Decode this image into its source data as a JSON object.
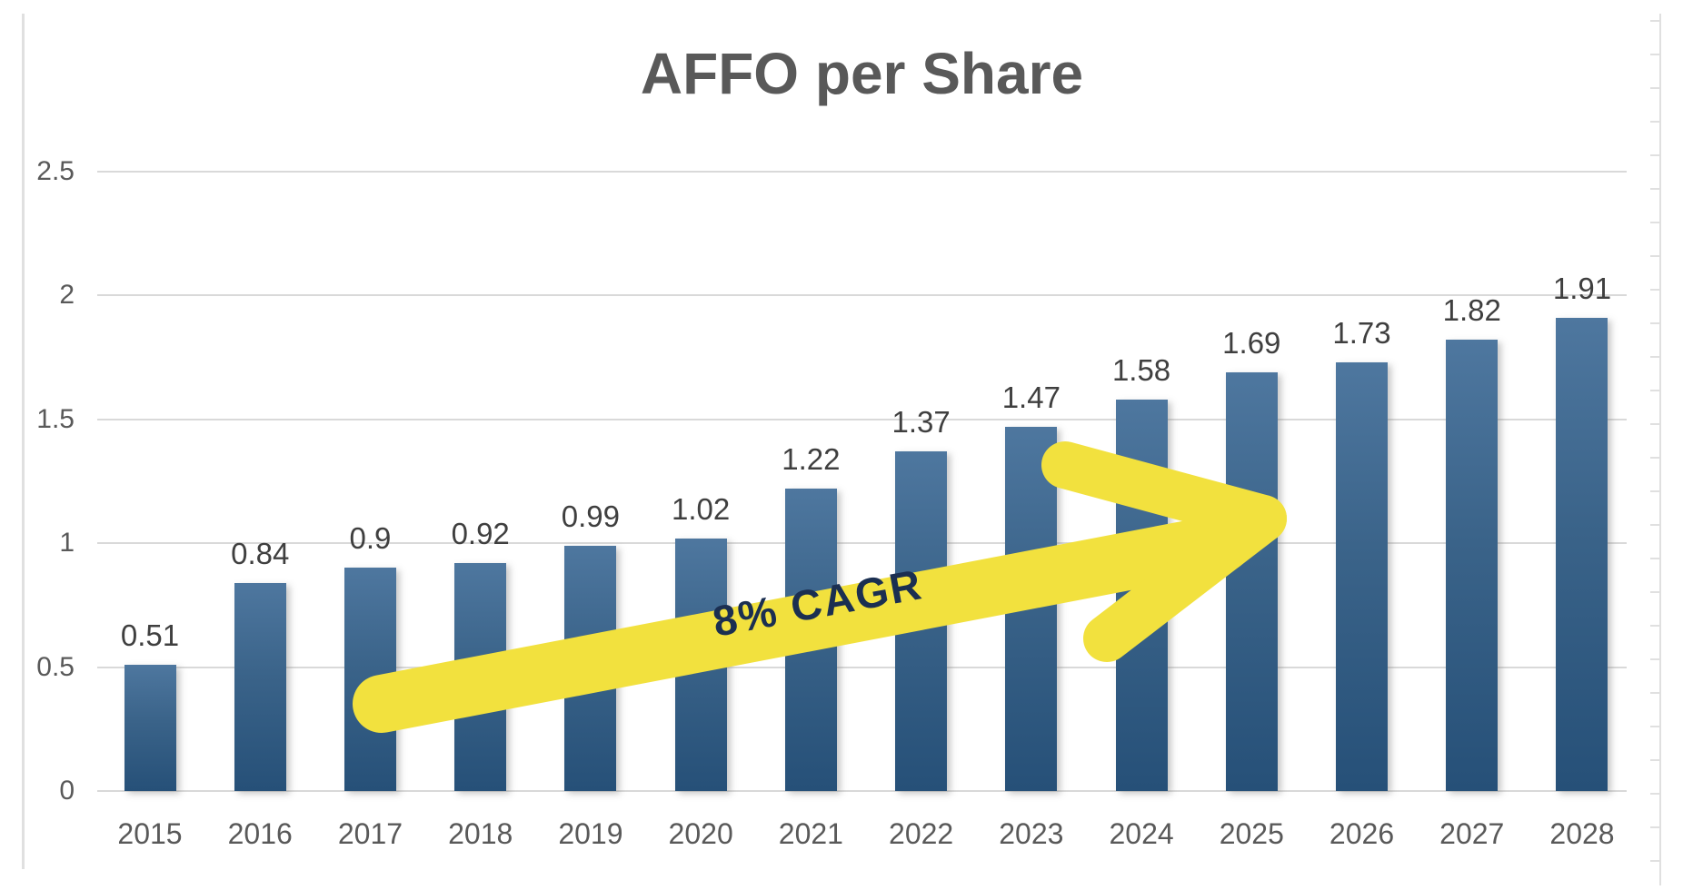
{
  "title": "AFFO per Share",
  "chart_data": {
    "type": "bar",
    "title": "AFFO per Share",
    "categories": [
      "2015",
      "2016",
      "2017",
      "2018",
      "2019",
      "2020",
      "2021",
      "2022",
      "2023",
      "2024",
      "2025",
      "2026",
      "2027",
      "2028"
    ],
    "values": [
      0.51,
      0.84,
      0.9,
      0.92,
      0.99,
      1.02,
      1.22,
      1.37,
      1.47,
      1.58,
      1.69,
      1.73,
      1.82,
      1.91
    ],
    "data_labels": [
      "0.51",
      "0.84",
      "0.9",
      "0.92",
      "0.99",
      "1.02",
      "1.22",
      "1.37",
      "1.47",
      "1.58",
      "1.69",
      "1.73",
      "1.82",
      "1.91"
    ],
    "xlabel": "",
    "ylabel": "",
    "ylim": [
      0,
      2.5
    ],
    "ytick_step": 0.5,
    "yticks": [
      "0",
      "0.5",
      "1",
      "1.5",
      "2",
      "2.5"
    ],
    "grid": true,
    "legend": "none",
    "annotation": {
      "text": "8% CAGR",
      "rotation_deg": -10.5
    },
    "colors": {
      "bar_gradient_top": "#4E779F",
      "bar_gradient_mid": "#3A6389",
      "bar_gradient_bottom": "#265078",
      "arrow_yellow": "#F2E13E",
      "annotation_text": "#1B2F51",
      "title_color": "#595959",
      "axis_label_color": "#595959",
      "data_label_color": "#3F3F3F",
      "gridline_color": "#D9D9D9",
      "border_color": "#E0E0E0"
    }
  }
}
